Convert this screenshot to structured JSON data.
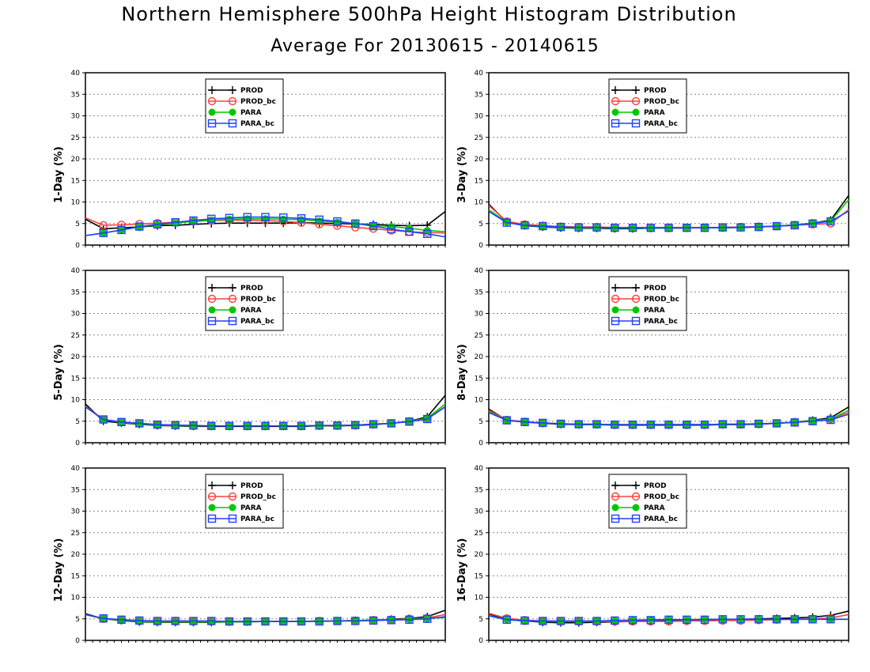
{
  "title": "Northern Hemisphere 500hPa Height Histogram Distribution",
  "subtitle": "Average For 20130615 - 20140615",
  "colors": {
    "PROD": "#000000",
    "PROD_bc": "#ff4040",
    "PARA": "#00c800",
    "PARA_bc": "#2040ff"
  },
  "legend_labels": [
    "PROD",
    "PROD_bc",
    "PARA",
    "PARA_bc"
  ],
  "chart_data": [
    {
      "type": "line",
      "ylabel": "1-Day (%)",
      "ylim": [
        0,
        40
      ],
      "yticks": [
        0,
        5,
        10,
        15,
        20,
        25,
        30,
        35,
        40
      ],
      "grid": "horizontal dotted",
      "legend": "top-center",
      "x": [
        1,
        2,
        3,
        4,
        5,
        6,
        7,
        8,
        9,
        10,
        11,
        12,
        13,
        14,
        15,
        16,
        17,
        18,
        19,
        20,
        21
      ],
      "series": [
        {
          "name": "PROD",
          "values": [
            6.0,
            3.8,
            4.0,
            4.2,
            4.5,
            4.6,
            4.8,
            5.0,
            5.1,
            5.1,
            5.1,
            5.1,
            5.2,
            5.1,
            5.0,
            4.9,
            4.8,
            4.6,
            4.5,
            4.6,
            7.8
          ]
        },
        {
          "name": "PROD_bc",
          "values": [
            6.3,
            4.6,
            4.7,
            4.9,
            5.1,
            5.3,
            5.5,
            5.7,
            5.8,
            5.8,
            5.7,
            5.5,
            5.2,
            4.8,
            4.5,
            4.1,
            3.8,
            3.4,
            3.1,
            2.9,
            2.8
          ]
        },
        {
          "name": "PARA",
          "values": [
            2.2,
            2.8,
            3.5,
            4.2,
            4.7,
            5.1,
            5.5,
            5.8,
            6.0,
            6.1,
            6.1,
            6.0,
            5.9,
            5.6,
            5.3,
            5.0,
            4.6,
            4.3,
            3.9,
            3.4,
            3.1
          ]
        },
        {
          "name": "PARA_bc",
          "values": [
            2.2,
            2.8,
            3.5,
            4.3,
            4.8,
            5.3,
            5.7,
            6.1,
            6.3,
            6.5,
            6.5,
            6.4,
            6.2,
            5.9,
            5.5,
            5.0,
            4.4,
            3.7,
            3.1,
            2.6,
            1.9
          ]
        }
      ]
    },
    {
      "type": "line",
      "ylabel": "3-Day (%)",
      "ylim": [
        0,
        40
      ],
      "yticks": [
        0,
        5,
        10,
        15,
        20,
        25,
        30,
        35,
        40
      ],
      "grid": "horizontal dotted",
      "legend": "top-center",
      "x": [
        1,
        2,
        3,
        4,
        5,
        6,
        7,
        8,
        9,
        10,
        11,
        12,
        13,
        14,
        15,
        16,
        17,
        18,
        19,
        20,
        21
      ],
      "series": [
        {
          "name": "PROD",
          "values": [
            9.5,
            5.3,
            4.5,
            4.2,
            4.0,
            3.9,
            3.9,
            3.8,
            3.8,
            3.9,
            3.9,
            4.0,
            4.0,
            4.0,
            4.1,
            4.2,
            4.4,
            4.7,
            5.1,
            5.8,
            11.5
          ]
        },
        {
          "name": "PROD_bc",
          "values": [
            9.2,
            5.5,
            4.8,
            4.5,
            4.3,
            4.2,
            4.2,
            4.1,
            4.1,
            4.1,
            4.1,
            4.1,
            4.1,
            4.1,
            4.2,
            4.3,
            4.4,
            4.6,
            4.8,
            5.0,
            8.2
          ]
        },
        {
          "name": "PARA",
          "values": [
            8.2,
            5.3,
            4.6,
            4.3,
            4.1,
            4.0,
            4.0,
            3.9,
            3.9,
            3.9,
            3.9,
            4.0,
            4.0,
            4.0,
            4.1,
            4.2,
            4.4,
            4.7,
            5.1,
            5.6,
            10.5
          ]
        },
        {
          "name": "PARA_bc",
          "values": [
            7.8,
            5.2,
            4.6,
            4.4,
            4.2,
            4.1,
            4.1,
            4.0,
            4.0,
            4.0,
            4.0,
            4.0,
            4.0,
            4.1,
            4.1,
            4.2,
            4.4,
            4.6,
            5.0,
            5.5,
            7.9
          ]
        }
      ]
    },
    {
      "type": "line",
      "ylabel": "5-Day (%)",
      "ylim": [
        0,
        40
      ],
      "yticks": [
        0,
        5,
        10,
        15,
        20,
        25,
        30,
        35,
        40
      ],
      "grid": "horizontal dotted",
      "legend": "top-center",
      "x": [
        1,
        2,
        3,
        4,
        5,
        6,
        7,
        8,
        9,
        10,
        11,
        12,
        13,
        14,
        15,
        16,
        17,
        18,
        19,
        20,
        21
      ],
      "series": [
        {
          "name": "PROD",
          "values": [
            9.0,
            5.0,
            4.6,
            4.3,
            4.0,
            3.9,
            3.8,
            3.8,
            3.8,
            3.8,
            3.8,
            3.8,
            3.8,
            3.9,
            3.9,
            4.0,
            4.2,
            4.5,
            5.0,
            6.0,
            11.0
          ]
        },
        {
          "name": "PROD_bc",
          "values": [
            8.5,
            5.4,
            4.8,
            4.5,
            4.2,
            4.1,
            4.0,
            3.9,
            3.9,
            3.9,
            3.9,
            3.9,
            3.9,
            4.0,
            4.0,
            4.1,
            4.3,
            4.5,
            4.9,
            5.6,
            8.4
          ]
        },
        {
          "name": "PARA",
          "values": [
            8.4,
            5.3,
            4.7,
            4.4,
            4.1,
            4.0,
            3.9,
            3.9,
            3.9,
            3.9,
            3.9,
            3.9,
            3.9,
            3.9,
            4.0,
            4.1,
            4.3,
            4.5,
            5.0,
            5.7,
            9.0
          ]
        },
        {
          "name": "PARA_bc",
          "values": [
            8.3,
            5.4,
            4.8,
            4.5,
            4.2,
            4.1,
            4.0,
            3.9,
            3.9,
            3.9,
            3.9,
            3.9,
            3.9,
            4.0,
            4.0,
            4.1,
            4.3,
            4.5,
            4.9,
            5.5,
            8.3
          ]
        }
      ]
    },
    {
      "type": "line",
      "ylabel": "8-Day (%)",
      "ylim": [
        0,
        40
      ],
      "yticks": [
        0,
        5,
        10,
        15,
        20,
        25,
        30,
        35,
        40
      ],
      "grid": "horizontal dotted",
      "legend": "top-center",
      "x": [
        1,
        2,
        3,
        4,
        5,
        6,
        7,
        8,
        9,
        10,
        11,
        12,
        13,
        14,
        15,
        16,
        17,
        18,
        19,
        20,
        21
      ],
      "series": [
        {
          "name": "PROD",
          "values": [
            7.8,
            5.2,
            4.8,
            4.5,
            4.3,
            4.2,
            4.2,
            4.1,
            4.1,
            4.1,
            4.1,
            4.1,
            4.1,
            4.2,
            4.2,
            4.3,
            4.5,
            4.8,
            5.2,
            5.8,
            8.3
          ]
        },
        {
          "name": "PROD_bc",
          "values": [
            7.5,
            5.3,
            4.9,
            4.6,
            4.4,
            4.3,
            4.3,
            4.2,
            4.2,
            4.2,
            4.2,
            4.2,
            4.2,
            4.3,
            4.3,
            4.4,
            4.5,
            4.8,
            5.1,
            5.5,
            7.0
          ]
        },
        {
          "name": "PARA",
          "values": [
            7.2,
            5.2,
            4.8,
            4.6,
            4.4,
            4.3,
            4.2,
            4.2,
            4.2,
            4.2,
            4.2,
            4.2,
            4.2,
            4.2,
            4.3,
            4.4,
            4.5,
            4.8,
            5.1,
            5.5,
            7.5
          ]
        },
        {
          "name": "PARA_bc",
          "values": [
            7.0,
            5.2,
            4.8,
            4.6,
            4.4,
            4.3,
            4.3,
            4.2,
            4.2,
            4.2,
            4.2,
            4.2,
            4.2,
            4.3,
            4.3,
            4.4,
            4.5,
            4.7,
            5.0,
            5.3,
            6.6
          ]
        }
      ]
    },
    {
      "type": "line",
      "ylabel": "12-Day (%)",
      "ylim": [
        0,
        40
      ],
      "yticks": [
        0,
        5,
        10,
        15,
        20,
        25,
        30,
        35,
        40
      ],
      "grid": "horizontal dotted",
      "legend": "top-center",
      "x": [
        1,
        2,
        3,
        4,
        5,
        6,
        7,
        8,
        9,
        10,
        11,
        12,
        13,
        14,
        15,
        16,
        17,
        18,
        19,
        20,
        21
      ],
      "series": [
        {
          "name": "PROD",
          "values": [
            6.2,
            5.0,
            4.6,
            4.3,
            4.2,
            4.2,
            4.2,
            4.2,
            4.3,
            4.3,
            4.4,
            4.4,
            4.4,
            4.5,
            4.5,
            4.6,
            4.7,
            4.9,
            5.1,
            5.5,
            7.0
          ]
        },
        {
          "name": "PROD_bc",
          "values": [
            6.0,
            5.0,
            4.7,
            4.5,
            4.4,
            4.4,
            4.4,
            4.4,
            4.4,
            4.4,
            4.4,
            4.4,
            4.4,
            4.5,
            4.5,
            4.6,
            4.7,
            4.8,
            5.0,
            5.2,
            6.0
          ]
        },
        {
          "name": "PARA",
          "values": [
            6.0,
            5.0,
            4.7,
            4.4,
            4.3,
            4.3,
            4.3,
            4.3,
            4.3,
            4.3,
            4.4,
            4.4,
            4.4,
            4.5,
            4.5,
            4.6,
            4.7,
            4.8,
            4.9,
            5.1,
            5.3
          ]
        },
        {
          "name": "PARA_bc",
          "values": [
            6.0,
            5.1,
            4.8,
            4.6,
            4.5,
            4.5,
            4.5,
            4.5,
            4.4,
            4.4,
            4.4,
            4.4,
            4.4,
            4.4,
            4.5,
            4.5,
            4.6,
            4.7,
            4.8,
            5.0,
            5.5
          ]
        }
      ]
    },
    {
      "type": "line",
      "ylabel": "16-Day (%)",
      "ylim": [
        0,
        40
      ],
      "yticks": [
        0,
        5,
        10,
        15,
        20,
        25,
        30,
        35,
        40
      ],
      "grid": "horizontal dotted",
      "legend": "top-center",
      "x": [
        1,
        2,
        3,
        4,
        5,
        6,
        7,
        8,
        9,
        10,
        11,
        12,
        13,
        14,
        15,
        16,
        17,
        18,
        19,
        20,
        21
      ],
      "series": [
        {
          "name": "PROD",
          "values": [
            6.2,
            4.8,
            4.5,
            4.2,
            4.1,
            4.1,
            4.2,
            4.3,
            4.4,
            4.5,
            4.6,
            4.7,
            4.8,
            4.9,
            4.9,
            5.0,
            5.1,
            5.2,
            5.4,
            5.8,
            6.8
          ]
        },
        {
          "name": "PROD_bc",
          "values": [
            6.3,
            5.1,
            4.7,
            4.5,
            4.4,
            4.4,
            4.4,
            4.4,
            4.4,
            4.4,
            4.4,
            4.5,
            4.5,
            4.6,
            4.6,
            4.7,
            4.8,
            4.9,
            5.0,
            5.2,
            6.0
          ]
        },
        {
          "name": "PARA",
          "values": [
            5.8,
            4.8,
            4.5,
            4.4,
            4.4,
            4.4,
            4.5,
            4.6,
            4.7,
            4.8,
            4.8,
            4.8,
            4.9,
            4.9,
            4.9,
            4.9,
            4.9,
            4.9,
            4.9,
            4.9,
            4.9
          ]
        },
        {
          "name": "PARA_bc",
          "values": [
            5.7,
            4.8,
            4.6,
            4.5,
            4.5,
            4.5,
            4.5,
            4.6,
            4.7,
            4.7,
            4.8,
            4.8,
            4.8,
            4.9,
            4.9,
            4.9,
            4.9,
            4.9,
            4.9,
            4.9,
            4.9
          ]
        }
      ]
    }
  ]
}
